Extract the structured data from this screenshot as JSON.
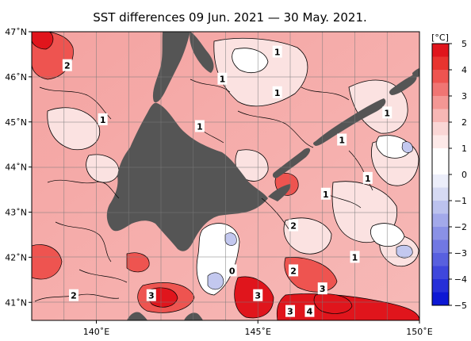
{
  "title": "SST differences 09 Jun. 2021 — 30 May. 2021.",
  "map": {
    "lon_range": [
      138,
      150
    ],
    "lat_range": [
      40.6,
      47
    ],
    "lon_ticks": [
      {
        "value": 140,
        "label": "140˚E"
      },
      {
        "value": 145,
        "label": "145˚E"
      },
      {
        "value": 150,
        "label": "150˚E"
      }
    ],
    "lat_ticks": [
      {
        "value": 47,
        "label": "47˚N"
      },
      {
        "value": 46,
        "label": "46˚N"
      },
      {
        "value": 45,
        "label": "45˚N"
      },
      {
        "value": 44,
        "label": "44˚N"
      },
      {
        "value": 43,
        "label": "43˚N"
      },
      {
        "value": 42,
        "label": "42˚N"
      },
      {
        "value": 41,
        "label": "41˚N"
      }
    ],
    "land_color": "#555555",
    "contour_labels": [
      {
        "text": "2",
        "lon": 139.1,
        "lat": 46.25
      },
      {
        "text": "1",
        "lon": 145.6,
        "lat": 46.55
      },
      {
        "text": "1",
        "lon": 143.9,
        "lat": 45.95
      },
      {
        "text": "1",
        "lon": 145.6,
        "lat": 45.65
      },
      {
        "text": "1",
        "lon": 140.2,
        "lat": 45.05
      },
      {
        "text": "1",
        "lon": 143.2,
        "lat": 44.9
      },
      {
        "text": "1",
        "lon": 149.0,
        "lat": 45.2
      },
      {
        "text": "1",
        "lon": 147.6,
        "lat": 44.6
      },
      {
        "text": "1",
        "lon": 148.4,
        "lat": 43.75
      },
      {
        "text": "1",
        "lon": 147.1,
        "lat": 43.4
      },
      {
        "text": "2",
        "lon": 146.1,
        "lat": 42.7
      },
      {
        "text": "1",
        "lon": 148.0,
        "lat": 42.0
      },
      {
        "text": "0",
        "lon": 144.2,
        "lat": 41.7
      },
      {
        "text": "2",
        "lon": 146.1,
        "lat": 41.7
      },
      {
        "text": "3",
        "lon": 147.0,
        "lat": 41.3
      },
      {
        "text": "2",
        "lon": 139.3,
        "lat": 41.15
      },
      {
        "text": "3",
        "lon": 141.7,
        "lat": 41.15
      },
      {
        "text": "3",
        "lon": 145.0,
        "lat": 41.15
      },
      {
        "text": "3",
        "lon": 146.0,
        "lat": 40.8
      },
      {
        "text": "4",
        "lon": 146.6,
        "lat": 40.8
      }
    ]
  },
  "colorbar": {
    "unit": "[°C]",
    "min": -5,
    "max": 5,
    "ticks": [
      "5",
      "4",
      "3",
      "2",
      "1",
      "0",
      "−1",
      "−2",
      "−3",
      "−4",
      "−5"
    ],
    "colors_top_to_bottom": [
      "#e0151c",
      "#e8342f",
      "#ee5450",
      "#f07573",
      "#f49794",
      "#f7b7b5",
      "#fad6d5",
      "#fde9e8",
      "#ffffff",
      "#ffffff",
      "#eceefa",
      "#d6daf3",
      "#bcc2ee",
      "#a3a9ea",
      "#8a91e6",
      "#7178e3",
      "#5860df",
      "#3f47dc",
      "#262fd8",
      "#0d18d4"
    ]
  }
}
